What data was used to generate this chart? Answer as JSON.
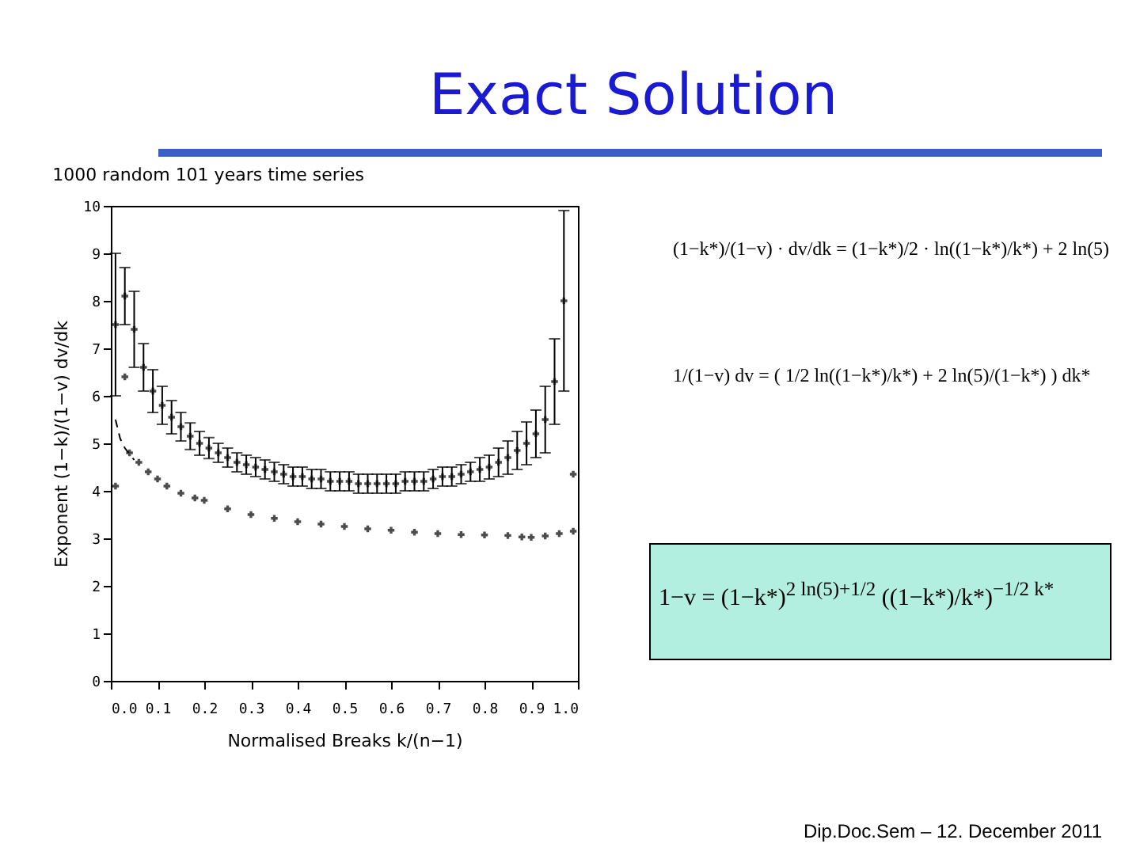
{
  "chart_data": {
    "type": "scatter",
    "title": "Exact Solution",
    "subtitle": "1000 random 101 years time series",
    "xlabel": "Normalised Breaks k/(n−1)",
    "ylabel": "Exponent (1−k)/(1−v) dv/dk",
    "annotations": [
      "(1−k*)/(1−v) · dv/dk  =  (1−k*)/2 · ln((1−k*)/k*) + 2 ln(5)",
      "1/(1−v) dv  =  ( 1/2 ln((1−k*)/k*) + 2 ln(5)/(1−k*) ) dk*",
      "1−v  =  (1−k*)$^{2 ln(5)+1/2}$ ((1−k*)/k*)$^{−1/2 k*}$",
      "Dip.Doc.Sem – 12. December 2011"
    ],
    "xlim": [
      0,
      1
    ],
    "ylim": [
      0,
      10
    ],
    "xticks": [
      {
        "value": 0,
        "label": "0.0"
      },
      0.1,
      0.2,
      0.3,
      0.4,
      0.5,
      0.6,
      0.7,
      0.8,
      0.9,
      {
        "value": 1,
        "label": "1.0"
      }
    ],
    "yticks": [
      0,
      1,
      2,
      3,
      4,
      5,
      6,
      7,
      8,
      9,
      10
    ],
    "grid": false,
    "marker": "cross",
    "series": [
      {
        "color": "#000000",
        "x": [
          0.01,
          0.03,
          0.05,
          0.07,
          0.09,
          0.11,
          0.13,
          0.15,
          0.17,
          0.19,
          0.21,
          0.23,
          0.25,
          0.27,
          0.29,
          0.31,
          0.33,
          0.35,
          0.37,
          0.39,
          0.41,
          0.43,
          0.45,
          0.47,
          0.49,
          0.51,
          0.53,
          0.55,
          0.57,
          0.59,
          0.61,
          0.63,
          0.65,
          0.67,
          0.69,
          0.71,
          0.73,
          0.75,
          0.77,
          0.79,
          0.81,
          0.83,
          0.85,
          0.87,
          0.89,
          0.91,
          0.93,
          0.95,
          0.97
        ],
        "values": [
          7.5,
          8.1,
          7.4,
          6.6,
          6.1,
          5.8,
          5.55,
          5.35,
          5.15,
          5.0,
          4.9,
          4.8,
          4.7,
          4.6,
          4.55,
          4.5,
          4.45,
          4.4,
          4.35,
          4.3,
          4.3,
          4.25,
          4.25,
          4.2,
          4.2,
          4.2,
          4.15,
          4.15,
          4.15,
          4.15,
          4.15,
          4.2,
          4.2,
          4.2,
          4.25,
          4.3,
          4.3,
          4.35,
          4.4,
          4.45,
          4.5,
          4.6,
          4.7,
          4.85,
          5.0,
          5.2,
          5.5,
          6.3,
          8.0
        ],
        "errors": [
          1.5,
          0.6,
          0.8,
          0.5,
          0.45,
          0.4,
          0.35,
          0.3,
          0.28,
          0.25,
          0.22,
          0.2,
          0.2,
          0.2,
          0.2,
          0.2,
          0.2,
          0.2,
          0.2,
          0.2,
          0.2,
          0.2,
          0.2,
          0.2,
          0.2,
          0.2,
          0.2,
          0.2,
          0.2,
          0.2,
          0.2,
          0.2,
          0.2,
          0.2,
          0.2,
          0.2,
          0.2,
          0.2,
          0.2,
          0.25,
          0.25,
          0.3,
          0.35,
          0.4,
          0.45,
          0.5,
          0.7,
          0.9,
          1.9
        ]
      },
      {
        "color": "#000000",
        "x": [
          0.01,
          0.03,
          0.04,
          0.06,
          0.08,
          0.1,
          0.12,
          0.15,
          0.18,
          0.2,
          0.25,
          0.3,
          0.35,
          0.4,
          0.45,
          0.5,
          0.55,
          0.6,
          0.65,
          0.7,
          0.75,
          0.8,
          0.85,
          0.88,
          0.9,
          0.93,
          0.96,
          0.99,
          0.99
        ],
        "values": [
          4.1,
          6.4,
          4.8,
          4.6,
          4.4,
          4.25,
          4.1,
          3.95,
          3.85,
          3.8,
          3.62,
          3.5,
          3.42,
          3.35,
          3.3,
          3.25,
          3.2,
          3.17,
          3.13,
          3.1,
          3.08,
          3.07,
          3.06,
          3.03,
          3.02,
          3.05,
          3.1,
          3.15,
          4.35
        ]
      },
      {
        "type": "line",
        "marker": "none",
        "line_style": "dashed",
        "color": "#000000",
        "x": [
          0.01,
          0.02,
          0.03,
          0.05
        ],
        "values": [
          5.5,
          5.1,
          4.9,
          4.65
        ]
      }
    ]
  }
}
